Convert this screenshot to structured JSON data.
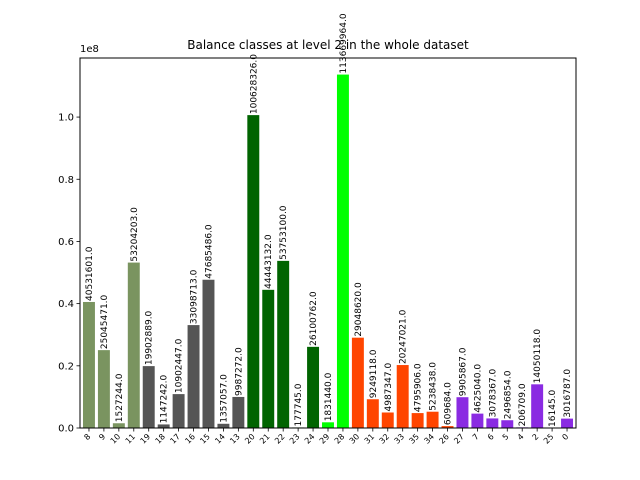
{
  "chart_data": {
    "type": "bar",
    "title": "Balance classes at level 2 in the whole dataset",
    "xlabel": "",
    "ylabel": "",
    "y_offset_label": "1e8",
    "ylim": [
      0,
      119000000
    ],
    "yticks": [
      0.0,
      0.2,
      0.4,
      0.6,
      0.8,
      1.0
    ],
    "ytick_labels": [
      "0.0",
      "0.2",
      "0.4",
      "0.6",
      "0.8",
      "1.0"
    ],
    "y_scale": 100000000,
    "grid": false,
    "legend": "none",
    "categories": [
      "8",
      "9",
      "10",
      "11",
      "19",
      "18",
      "17",
      "16",
      "15",
      "14",
      "13",
      "20",
      "21",
      "22",
      "23",
      "24",
      "29",
      "28",
      "30",
      "31",
      "32",
      "33",
      "35",
      "34",
      "26",
      "27",
      "7",
      "6",
      "5",
      "4",
      "2",
      "25",
      "0"
    ],
    "values": [
      40531601,
      25045471,
      1527244,
      53204203,
      19902889,
      1147242,
      10902447,
      33098713,
      47685486,
      1357057,
      9987272,
      100628326,
      44443132,
      53753100,
      177745,
      26100762,
      1831440,
      113669964,
      29048620,
      9249118,
      4987347,
      20247021,
      4795906,
      5238438,
      609684,
      9905867,
      4625040,
      3078367,
      2496854,
      206709,
      14050118,
      16145,
      3016787
    ],
    "value_labels": [
      "40531601.0",
      "25045471.0",
      "1527244.0",
      "53204203.0",
      "19902889.0",
      "1147242.0",
      "10902447.0",
      "33098713.0",
      "47685486.0",
      "1357057.0",
      "9987272.0",
      "100628326.0",
      "44443132.0",
      "53753100.0",
      "177745.0",
      "26100762.0",
      "1831440.0",
      "113669964.0",
      "29048620.0",
      "9249118.0",
      "4987347.0",
      "20247021.0",
      "4795906.0",
      "5238438.0",
      "609684.0",
      "9905867.0",
      "4625040.0",
      "3078367.0",
      "2496854.0",
      "206709.0",
      "14050118.0",
      "16145.0",
      "3016787.0"
    ],
    "colors": [
      "#7a9460",
      "#7a9460",
      "#7a9460",
      "#7a9460",
      "#555555",
      "#555555",
      "#555555",
      "#555555",
      "#555555",
      "#555555",
      "#555555",
      "#006400",
      "#006400",
      "#006400",
      "#006400",
      "#006400",
      "#00ff00",
      "#00ff00",
      "#ff4500",
      "#ff4500",
      "#ff4500",
      "#ff4500",
      "#ff4500",
      "#ff4500",
      "#ff4500",
      "#8a2be2",
      "#8a2be2",
      "#8a2be2",
      "#8a2be2",
      "#8a2be2",
      "#8a2be2",
      "#8a2be2",
      "#8a2be2"
    ]
  }
}
